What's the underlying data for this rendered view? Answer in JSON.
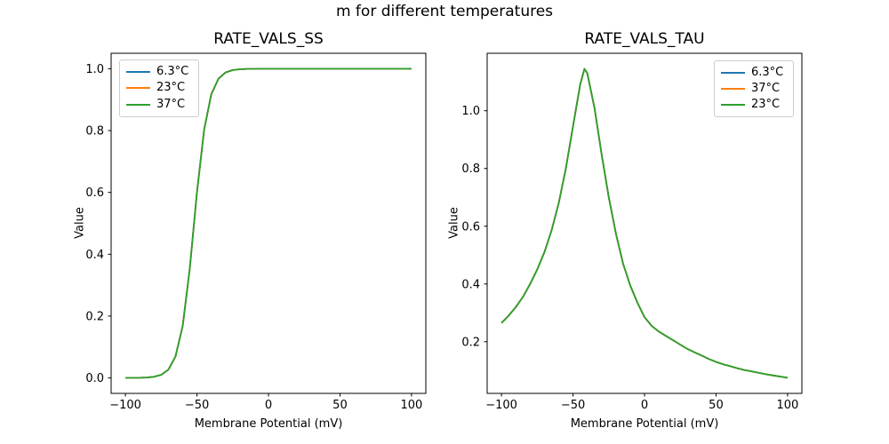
{
  "figure": {
    "suptitle": "m for different temperatures",
    "background_color": "#ffffff"
  },
  "chart_data": [
    {
      "type": "line",
      "title": "RATE_VALS_SS",
      "xlabel": "Membrane Potential (mV)",
      "ylabel": "Value",
      "xlim": [
        -110,
        110
      ],
      "ylim": [
        -0.05,
        1.05
      ],
      "grid": false,
      "xtick_values": [
        -100,
        -50,
        0,
        50,
        100
      ],
      "xtick_labels": [
        "−100",
        "−50",
        "0",
        "50",
        "100"
      ],
      "ytick_values": [
        0.0,
        0.2,
        0.4,
        0.6,
        0.8,
        1.0
      ],
      "ytick_labels": [
        "0.0",
        "0.2",
        "0.4",
        "0.6",
        "0.8",
        "1.0"
      ],
      "legend": {
        "loc": "upper left",
        "entries": [
          {
            "label": "6.3°C",
            "color": "#1f77b4"
          },
          {
            "label": "23°C",
            "color": "#ff7f0e"
          },
          {
            "label": "37°C",
            "color": "#2ca02c"
          }
        ]
      },
      "series_note": "All three temperature curves overlap exactly; only the last-drawn green (37°C) curve is visible. Sigmoid: half-activation near −52 mV, 0 at −100 mV, plateau 1.0 above −25 mV.",
      "x": [
        -100,
        -95,
        -90,
        -85,
        -80,
        -75,
        -70,
        -65,
        -60,
        -55,
        -50,
        -45,
        -40,
        -35,
        -30,
        -25,
        -20,
        -15,
        -10,
        -5,
        0,
        5,
        10,
        15,
        20,
        25,
        30,
        35,
        40,
        45,
        50,
        55,
        60,
        65,
        70,
        75,
        80,
        85,
        90,
        95,
        100
      ],
      "series": [
        {
          "name": "6.3°C",
          "color": "#1f77b4",
          "values": [
            0.0001,
            0.0002,
            0.0005,
            0.0013,
            0.0036,
            0.0099,
            0.0266,
            0.0691,
            0.168,
            0.3543,
            0.5987,
            0.8022,
            0.9168,
            0.9677,
            0.9881,
            0.9957,
            0.9984,
            0.9994,
            0.9998,
            0.9999,
            1.0,
            1.0,
            1.0,
            1.0,
            1.0,
            1.0,
            1.0,
            1.0,
            1.0,
            1.0,
            1.0,
            1.0,
            1.0,
            1.0,
            1.0,
            1.0,
            1.0,
            1.0,
            1.0,
            1.0,
            1.0
          ]
        },
        {
          "name": "23°C",
          "color": "#ff7f0e",
          "values": [
            0.0001,
            0.0002,
            0.0005,
            0.0013,
            0.0036,
            0.0099,
            0.0266,
            0.0691,
            0.168,
            0.3543,
            0.5987,
            0.8022,
            0.9168,
            0.9677,
            0.9881,
            0.9957,
            0.9984,
            0.9994,
            0.9998,
            0.9999,
            1.0,
            1.0,
            1.0,
            1.0,
            1.0,
            1.0,
            1.0,
            1.0,
            1.0,
            1.0,
            1.0,
            1.0,
            1.0,
            1.0,
            1.0,
            1.0,
            1.0,
            1.0,
            1.0,
            1.0,
            1.0
          ]
        },
        {
          "name": "37°C",
          "color": "#2ca02c",
          "values": [
            0.0001,
            0.0002,
            0.0005,
            0.0013,
            0.0036,
            0.0099,
            0.0266,
            0.0691,
            0.168,
            0.3543,
            0.5987,
            0.8022,
            0.9168,
            0.9677,
            0.9881,
            0.9957,
            0.9984,
            0.9994,
            0.9998,
            0.9999,
            1.0,
            1.0,
            1.0,
            1.0,
            1.0,
            1.0,
            1.0,
            1.0,
            1.0,
            1.0,
            1.0,
            1.0,
            1.0,
            1.0,
            1.0,
            1.0,
            1.0,
            1.0,
            1.0,
            1.0,
            1.0
          ]
        }
      ]
    },
    {
      "type": "line",
      "title": "RATE_VALS_TAU",
      "xlabel": "Membrane Potential (mV)",
      "ylabel": "Value",
      "xlim": [
        -110,
        110
      ],
      "ylim": [
        0.021,
        1.199
      ],
      "grid": false,
      "xtick_values": [
        -100,
        -50,
        0,
        50,
        100
      ],
      "xtick_labels": [
        "−100",
        "−50",
        "0",
        "50",
        "100"
      ],
      "ytick_values": [
        0.2,
        0.4,
        0.6,
        0.8,
        1.0
      ],
      "ytick_labels": [
        "0.2",
        "0.4",
        "0.6",
        "0.8",
        "1.0"
      ],
      "legend": {
        "loc": "upper right",
        "entries": [
          {
            "label": "6.3°C",
            "color": "#1f77b4"
          },
          {
            "label": "37°C",
            "color": "#ff7f0e"
          },
          {
            "label": "23°C",
            "color": "#2ca02c"
          }
        ]
      },
      "series_note": "All three temperature curves overlap exactly; only the last-drawn green (23°C) curve is visible. Bell-shaped time constant: 0.27 at −100 mV, peak ≈1.14 near −42 mV, decays to ≈0.075 at +100 mV.",
      "x": [
        -100,
        -95,
        -90,
        -85,
        -80,
        -75,
        -70,
        -65,
        -60,
        -55,
        -50,
        -45,
        -42,
        -40,
        -35,
        -30,
        -25,
        -20,
        -15,
        -10,
        -5,
        0,
        5,
        10,
        15,
        20,
        25,
        30,
        35,
        40,
        45,
        50,
        55,
        60,
        65,
        70,
        75,
        80,
        85,
        90,
        95,
        100
      ],
      "series": [
        {
          "name": "6.3°C",
          "color": "#1f77b4",
          "values": [
            0.265,
            0.29,
            0.32,
            0.355,
            0.4,
            0.45,
            0.51,
            0.585,
            0.68,
            0.8,
            0.945,
            1.09,
            1.145,
            1.13,
            1.01,
            0.85,
            0.7,
            0.575,
            0.47,
            0.395,
            0.335,
            0.285,
            0.255,
            0.235,
            0.22,
            0.205,
            0.19,
            0.175,
            0.163,
            0.152,
            0.14,
            0.13,
            0.122,
            0.115,
            0.108,
            0.102,
            0.097,
            0.092,
            0.087,
            0.083,
            0.079,
            0.075
          ]
        },
        {
          "name": "37°C",
          "color": "#ff7f0e",
          "values": [
            0.265,
            0.29,
            0.32,
            0.355,
            0.4,
            0.45,
            0.51,
            0.585,
            0.68,
            0.8,
            0.945,
            1.09,
            1.145,
            1.13,
            1.01,
            0.85,
            0.7,
            0.575,
            0.47,
            0.395,
            0.335,
            0.285,
            0.255,
            0.235,
            0.22,
            0.205,
            0.19,
            0.175,
            0.163,
            0.152,
            0.14,
            0.13,
            0.122,
            0.115,
            0.108,
            0.102,
            0.097,
            0.092,
            0.087,
            0.083,
            0.079,
            0.075
          ]
        },
        {
          "name": "23°C",
          "color": "#2ca02c",
          "values": [
            0.265,
            0.29,
            0.32,
            0.355,
            0.4,
            0.45,
            0.51,
            0.585,
            0.68,
            0.8,
            0.945,
            1.09,
            1.145,
            1.13,
            1.01,
            0.85,
            0.7,
            0.575,
            0.47,
            0.395,
            0.335,
            0.285,
            0.255,
            0.235,
            0.22,
            0.205,
            0.19,
            0.175,
            0.163,
            0.152,
            0.14,
            0.13,
            0.122,
            0.115,
            0.108,
            0.102,
            0.097,
            0.092,
            0.087,
            0.083,
            0.079,
            0.075
          ]
        }
      ]
    }
  ]
}
